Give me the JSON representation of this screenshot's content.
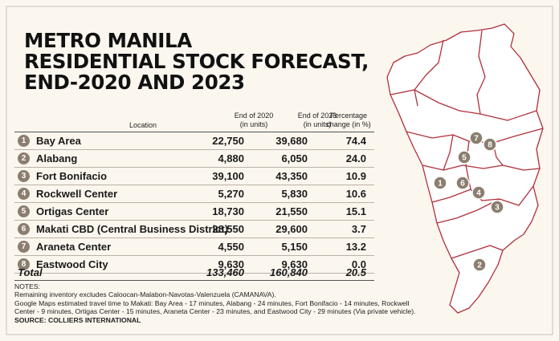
{
  "title": {
    "line1": "METRO MANILA",
    "line2": "RESIDENTIAL STOCK FORECAST,",
    "line3": "END-2020 AND 2023"
  },
  "headers": {
    "location": "Location",
    "end2020_line1": "End of 2020",
    "end2020_line2": "(in units)",
    "end2023_line1": "End of 2023",
    "end2023_line2": "(in units)",
    "pct_line1": "Percentage",
    "pct_line2": "change (in %)"
  },
  "rows": [
    {
      "num": "1",
      "location": "Bay Area",
      "end2020": "22,750",
      "end2023": "39,680",
      "pct": "74.4"
    },
    {
      "num": "2",
      "location": "Alabang",
      "end2020": "4,880",
      "end2023": "6,050",
      "pct": "24.0"
    },
    {
      "num": "3",
      "location": "Fort Bonifacio",
      "end2020": "39,100",
      "end2023": "43,350",
      "pct": "10.9"
    },
    {
      "num": "4",
      "location": "Rockwell Center",
      "end2020": "5,270",
      "end2023": "5,830",
      "pct": "10.6"
    },
    {
      "num": "5",
      "location": "Ortigas Center",
      "end2020": "18,730",
      "end2023": "21,550",
      "pct": "15.1"
    },
    {
      "num": "6",
      "location": "Makati CBD (Central Business District)",
      "end2020": "28,550",
      "end2023": "29,600",
      "pct": "3.7"
    },
    {
      "num": "7",
      "location": "Araneta Center",
      "end2020": "4,550",
      "end2023": "5,150",
      "pct": "13.2"
    },
    {
      "num": "8",
      "location": "Eastwood City",
      "end2020": "9,630",
      "end2023": "9,630",
      "pct": "0.0"
    }
  ],
  "total": {
    "label": "Total",
    "end2020": "133,460",
    "end2023": "160,840",
    "pct": "20.5"
  },
  "notes": {
    "heading": "NOTES:",
    "line1": "Remaining inventory excludes Caloocan-Malabon-Navotas-Valenzuela (CAMANAVA).",
    "line2": "Google Maps estimated travel time to Makati: Bay Area - 17 minutes, Alabang - 24 minutes, Fort Bonifacio - 14 minutes, Rockwell",
    "line3": "Center - 9 minutes, Ortigas Center - 15 minutes, Araneta Center - 23 minutes, and Eastwood City - 29 minutes (Via private vehicle).",
    "source": "SOURCE: COLLIERS INTERNATIONAL"
  },
  "colors": {
    "background": "#fbf6ee",
    "map_fill": "#ffffff",
    "map_stroke": "#b0303a",
    "frame": "#c7c2bb",
    "badge": "#8b7e6f"
  },
  "chart_data": {
    "type": "table",
    "title": "METRO MANILA RESIDENTIAL STOCK FORECAST, END-2020 AND 2023",
    "columns": [
      "Location",
      "End of 2020 (in units)",
      "End of 2023 (in units)",
      "Percentage change (in %)"
    ],
    "categories": [
      "Bay Area",
      "Alabang",
      "Fort Bonifacio",
      "Rockwell Center",
      "Ortigas Center",
      "Makati CBD (Central Business District)",
      "Araneta Center",
      "Eastwood City"
    ],
    "series": [
      {
        "name": "End of 2020 (in units)",
        "values": [
          22750,
          4880,
          39100,
          5270,
          18730,
          28550,
          4550,
          9630
        ]
      },
      {
        "name": "End of 2023 (in units)",
        "values": [
          39680,
          6050,
          43350,
          5830,
          21550,
          29600,
          5150,
          9630
        ]
      },
      {
        "name": "Percentage change (in %)",
        "values": [
          74.4,
          24.0,
          10.9,
          10.6,
          15.1,
          3.7,
          13.2,
          0.0
        ]
      }
    ],
    "totals": {
      "end2020": 133460,
      "end2023": 160840,
      "pct": 20.5
    }
  }
}
